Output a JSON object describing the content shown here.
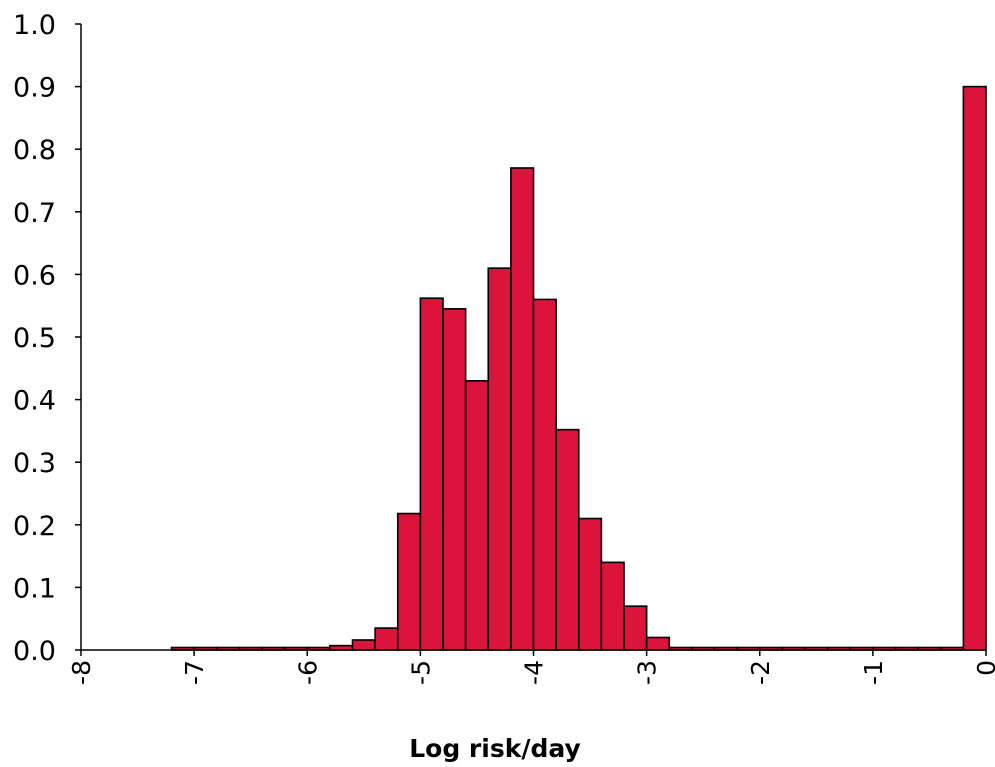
{
  "chart_data": {
    "type": "bar",
    "title": "",
    "xlabel": "Log risk/day",
    "ylabel": "",
    "xlim": [
      -8,
      0
    ],
    "ylim": [
      0,
      1.0
    ],
    "grid": false,
    "legend": "none",
    "bar_color": "#DC143C",
    "edge_color": "#000000",
    "bin_width": 0.2,
    "x_ticks": [
      "-8",
      "-7",
      "-6",
      "-5",
      "-4",
      "-3",
      "-2",
      "-1",
      "0"
    ],
    "y_ticks": [
      "0.0",
      "0.1",
      "0.2",
      "0.3",
      "0.4",
      "0.5",
      "0.6",
      "0.7",
      "0.8",
      "0.9",
      "1.0"
    ],
    "bins": [
      {
        "x0": -7.2,
        "value": 0.004
      },
      {
        "x0": -7.0,
        "value": 0.004
      },
      {
        "x0": -6.8,
        "value": 0.004
      },
      {
        "x0": -6.6,
        "value": 0.004
      },
      {
        "x0": -6.4,
        "value": 0.004
      },
      {
        "x0": -6.2,
        "value": 0.004
      },
      {
        "x0": -6.0,
        "value": 0.004
      },
      {
        "x0": -5.8,
        "value": 0.007
      },
      {
        "x0": -5.6,
        "value": 0.016
      },
      {
        "x0": -5.4,
        "value": 0.035
      },
      {
        "x0": -5.2,
        "value": 0.218
      },
      {
        "x0": -5.0,
        "value": 0.562
      },
      {
        "x0": -4.8,
        "value": 0.545
      },
      {
        "x0": -4.6,
        "value": 0.43
      },
      {
        "x0": -4.4,
        "value": 0.61
      },
      {
        "x0": -4.2,
        "value": 0.77
      },
      {
        "x0": -4.0,
        "value": 0.56
      },
      {
        "x0": -3.8,
        "value": 0.352
      },
      {
        "x0": -3.6,
        "value": 0.21
      },
      {
        "x0": -3.4,
        "value": 0.14
      },
      {
        "x0": -3.2,
        "value": 0.07
      },
      {
        "x0": -3.0,
        "value": 0.02
      },
      {
        "x0": -2.8,
        "value": 0.004
      },
      {
        "x0": -2.6,
        "value": 0.004
      },
      {
        "x0": -2.4,
        "value": 0.004
      },
      {
        "x0": -2.2,
        "value": 0.004
      },
      {
        "x0": -2.0,
        "value": 0.004
      },
      {
        "x0": -1.8,
        "value": 0.004
      },
      {
        "x0": -1.6,
        "value": 0.004
      },
      {
        "x0": -1.4,
        "value": 0.004
      },
      {
        "x0": -1.2,
        "value": 0.004
      },
      {
        "x0": -1.0,
        "value": 0.004
      },
      {
        "x0": -0.8,
        "value": 0.004
      },
      {
        "x0": -0.6,
        "value": 0.004
      },
      {
        "x0": -0.4,
        "value": 0.004
      },
      {
        "x0": -0.2,
        "value": 0.9
      }
    ]
  }
}
